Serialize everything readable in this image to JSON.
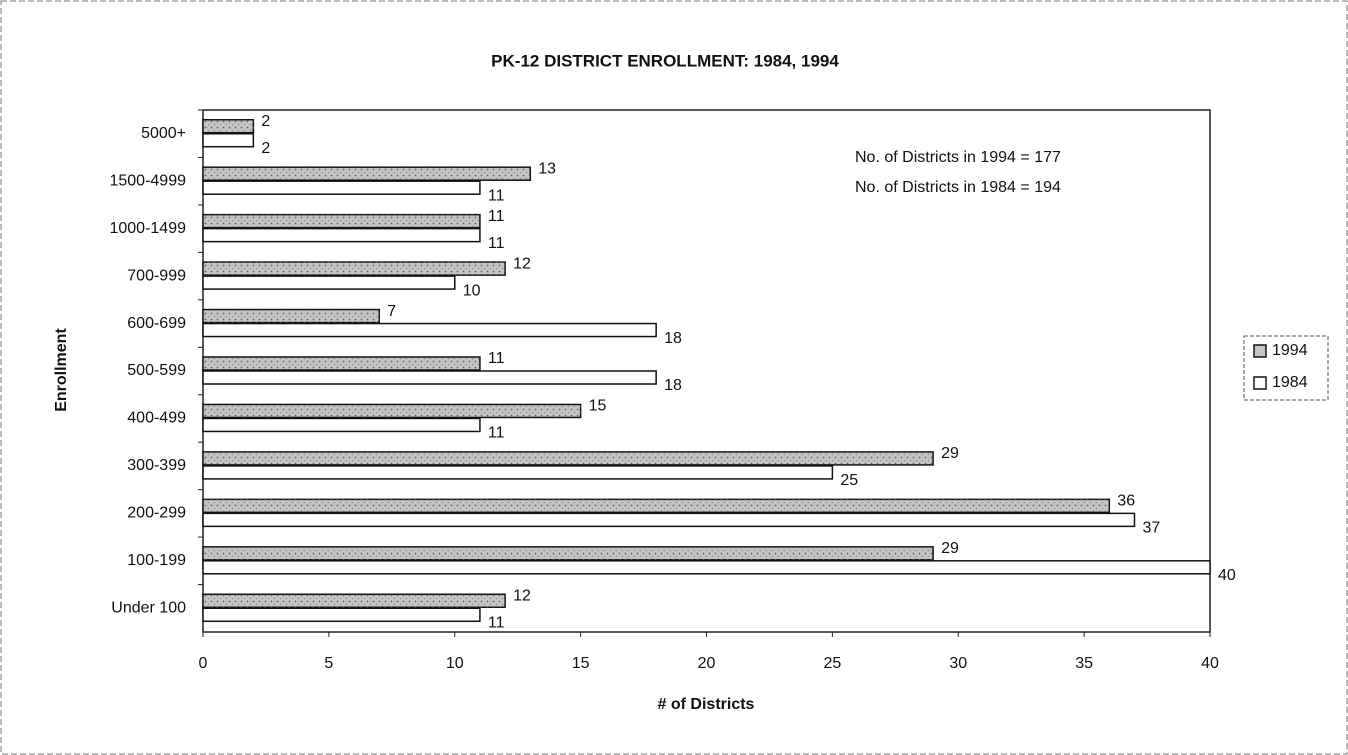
{
  "chart_data": {
    "type": "barh",
    "title": "PK-12 DISTRICT ENROLLMENT: 1984, 1994",
    "xlabel": "# of Districts",
    "ylabel": "Enrollment",
    "annotations": [
      "No. of Districts in 1994 = 177",
      "No. of Districts in 1984 = 194"
    ],
    "categories": [
      "5000+",
      "1500-4999",
      "1000-1499",
      "700-999",
      "600-699",
      "500-599",
      "400-499",
      "300-399",
      "200-299",
      "100-199",
      "Under 100"
    ],
    "series": [
      {
        "name": "1994",
        "color": "#c4c4c4",
        "values": [
          2,
          13,
          11,
          12,
          7,
          11,
          15,
          29,
          36,
          29,
          12
        ]
      },
      {
        "name": "1984",
        "color": "#ffffff",
        "values": [
          2,
          11,
          11,
          10,
          18,
          18,
          11,
          25,
          37,
          40,
          11
        ]
      }
    ],
    "xlim": [
      0,
      40
    ],
    "xticks": [
      0,
      5,
      10,
      15,
      20,
      25,
      30,
      35,
      40
    ],
    "grid": false,
    "legend": "right"
  }
}
